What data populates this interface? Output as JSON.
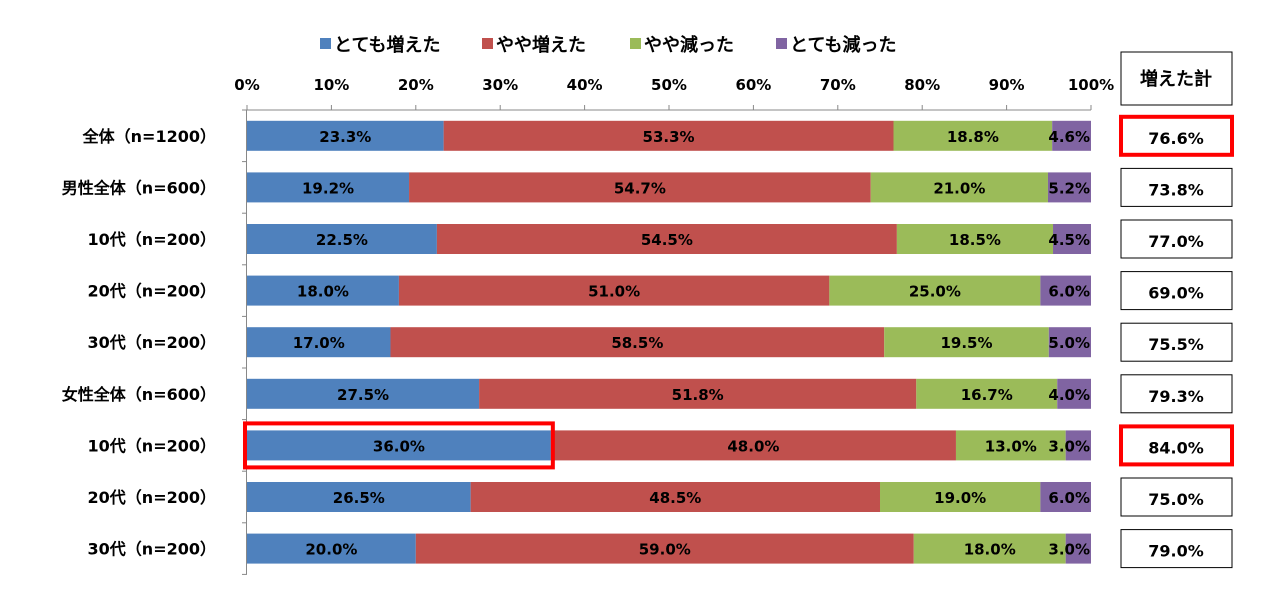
{
  "chart_data": {
    "type": "bar",
    "orientation": "horizontal",
    "stacked": "percent",
    "categories": [
      "全体（n=1200）",
      "男性全体（n=600）",
      "10代（n=200）",
      "20代（n=200）",
      "30代（n=200）",
      "女性全体（n=600）",
      "10代（n=200）",
      "20代（n=200）",
      "30代（n=200）"
    ],
    "series": [
      {
        "name": "とても増えた",
        "color": "#4F81BD",
        "values": [
          23.3,
          19.2,
          22.5,
          18.0,
          17.0,
          27.5,
          36.0,
          26.5,
          20.0
        ],
        "labels": [
          "23.3%",
          "19.2%",
          "22.5%",
          "18.0%",
          "17.0%",
          "27.5%",
          "36.0%",
          "26.5%",
          "20.0%"
        ]
      },
      {
        "name": "やや増えた",
        "color": "#C0504D",
        "values": [
          53.3,
          54.7,
          54.5,
          51.0,
          58.5,
          51.8,
          48.0,
          48.5,
          59.0
        ],
        "labels": [
          "53.3%",
          "54.7%",
          "54.5%",
          "51.0%",
          "58.5%",
          "51.8%",
          "48.0%",
          "48.5%",
          "59.0%"
        ]
      },
      {
        "name": "やや減った",
        "color": "#9BBB59",
        "values": [
          18.8,
          21.0,
          18.5,
          25.0,
          19.5,
          16.7,
          13.0,
          19.0,
          18.0
        ],
        "labels": [
          "18.8%",
          "21.0%",
          "18.5%",
          "25.0%",
          "19.5%",
          "16.7%",
          "13.0%",
          "19.0%",
          "18.0%"
        ]
      },
      {
        "name": "とても減った",
        "color": "#8064A2",
        "values": [
          4.6,
          5.2,
          4.5,
          6.0,
          5.0,
          4.0,
          3.0,
          6.0,
          3.0
        ],
        "labels": [
          "4.6%",
          "5.2%",
          "4.5%",
          "6.0%",
          "5.0%",
          "4.0%",
          "3.0%",
          "6.0%",
          "3.0%"
        ]
      }
    ],
    "xticks": [
      "0%",
      "10%",
      "20%",
      "30%",
      "40%",
      "50%",
      "60%",
      "70%",
      "80%",
      "90%",
      "100%"
    ],
    "xlim": [
      0,
      100
    ],
    "legend": "top",
    "totals_header": "増えた計",
    "totals": [
      "76.6%",
      "73.8%",
      "77.0%",
      "69.0%",
      "75.5%",
      "79.3%",
      "84.0%",
      "75.0%",
      "79.0%"
    ],
    "highlight_color": "#FF0000",
    "highlighted_totals": [
      0,
      6
    ],
    "highlighted_segment": {
      "row": 6,
      "series": 0
    }
  }
}
